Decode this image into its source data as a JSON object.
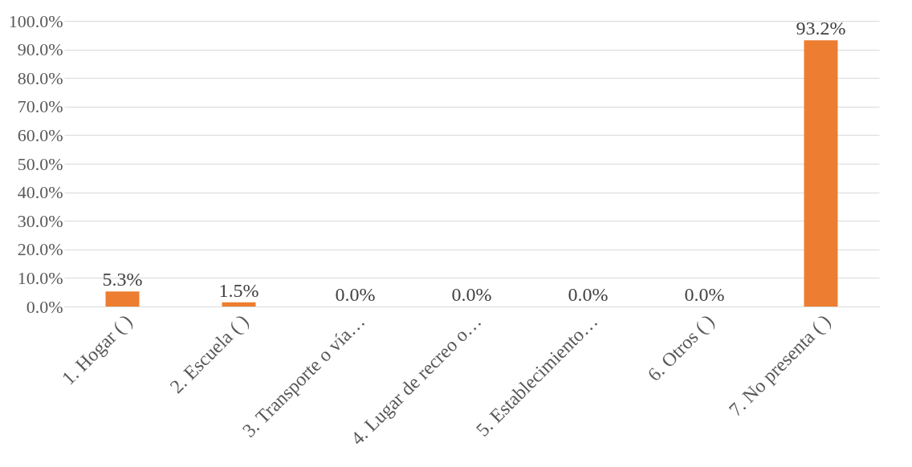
{
  "chart_data": {
    "type": "bar",
    "categories": [
      "1. Hogar ( )",
      "2.  Escuela ( )",
      "3.  Transporte o vía…",
      "4. Lugar de recreo o…",
      "5.  Establecimiento…",
      "6.  Otros ( )",
      "7.  No presenta ( )"
    ],
    "values": [
      5.3,
      1.5,
      0.0,
      0.0,
      0.0,
      0.0,
      93.2
    ],
    "color": "#ed7d31",
    "value_labels": [
      "5.3%",
      "1.5%",
      "0.0%",
      "0.0%",
      "0.0%",
      "0.0%",
      "93.2%"
    ],
    "ylim": [
      0,
      100
    ],
    "yticks": [
      {
        "value": 0,
        "label": "0.0%"
      },
      {
        "value": 10,
        "label": "10.0%"
      },
      {
        "value": 20,
        "label": "20.0%"
      },
      {
        "value": 30,
        "label": "30.0%"
      },
      {
        "value": 40,
        "label": "40.0%"
      },
      {
        "value": 50,
        "label": "50.0%"
      },
      {
        "value": 60,
        "label": "60.0%"
      },
      {
        "value": 70,
        "label": "70.0%"
      },
      {
        "value": 80,
        "label": "80.0%"
      },
      {
        "value": 90,
        "label": "90.0%"
      },
      {
        "value": 100,
        "label": "100.0%"
      }
    ],
    "grid": "y"
  }
}
